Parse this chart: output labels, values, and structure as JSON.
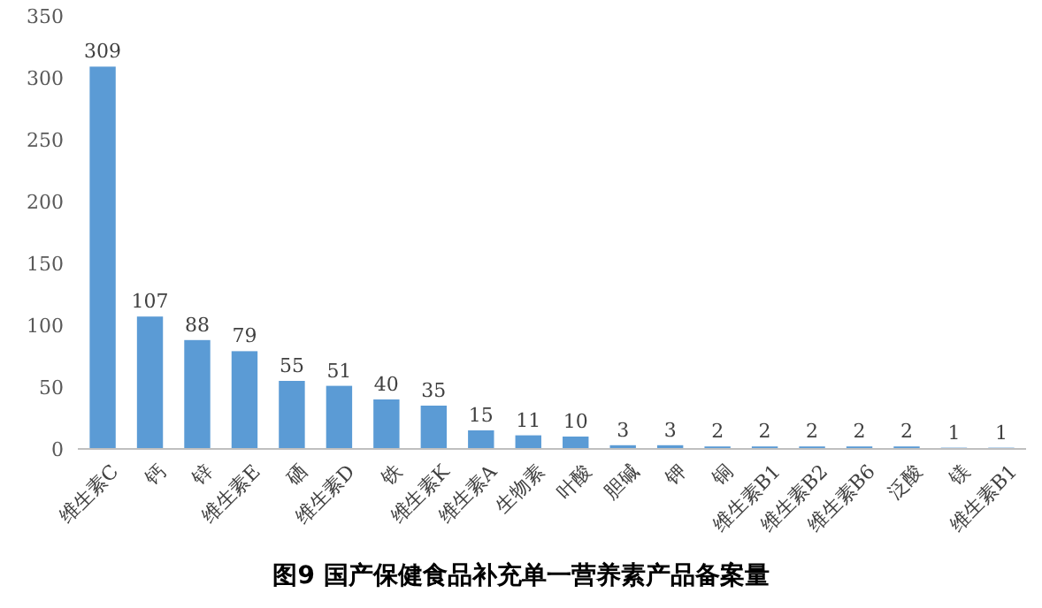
{
  "chart_data": {
    "type": "bar",
    "title": "图9 国产保健食品补充单一营养素产品备案量",
    "categories": [
      "维生素C",
      "钙",
      "锌",
      "维生素E",
      "硒",
      "维生素D",
      "铁",
      "维生素K",
      "维生素A",
      "生物素",
      "叶酸",
      "胆碱",
      "钾",
      "铜",
      "维生素B1",
      "维生素B2",
      "维生素B6",
      "泛酸",
      "镁",
      "维生素B1"
    ],
    "values": [
      309,
      107,
      88,
      79,
      55,
      51,
      40,
      35,
      15,
      11,
      10,
      3,
      3,
      2,
      2,
      2,
      2,
      2,
      1,
      1
    ],
    "color": "#5b9bd5",
    "ylim": [
      0,
      350
    ],
    "yticks": [
      0,
      50,
      100,
      150,
      200,
      250,
      300,
      350
    ],
    "data_labels": true,
    "grid": false
  }
}
